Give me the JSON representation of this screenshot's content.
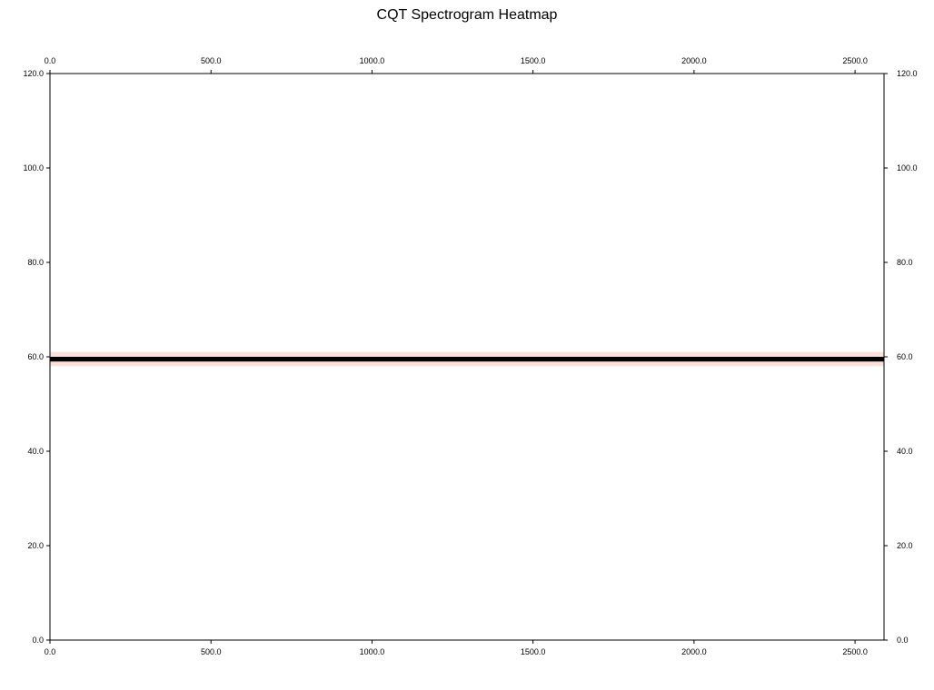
{
  "chart_data": {
    "type": "heatmap",
    "title": "CQT Spectrogram Heatmap",
    "xlabel": "",
    "ylabel": "",
    "xlim": [
      0,
      2590
    ],
    "ylim": [
      0,
      120
    ],
    "x_ticks": [
      "0.0",
      "500.0",
      "1000.0",
      "1500.0",
      "2000.0",
      "2500.0"
    ],
    "y_ticks": [
      "0.0",
      "20.0",
      "40.0",
      "60.0",
      "80.0",
      "100.0",
      "120.0"
    ],
    "x_tick_values": [
      0,
      500,
      1000,
      1500,
      2000,
      2500
    ],
    "y_tick_values": [
      0,
      20,
      40,
      60,
      80,
      100,
      120
    ],
    "grid": false,
    "bands": [
      {
        "y_low": 58.0,
        "y_high": 61.0,
        "x_start": 0,
        "x_end": 2590,
        "color": "#fbe1da"
      },
      {
        "y_low": 59.0,
        "y_high": 60.0,
        "x_start": 0,
        "x_end": 2590,
        "color": "#000000"
      }
    ]
  }
}
